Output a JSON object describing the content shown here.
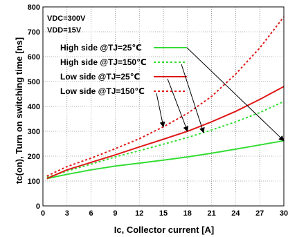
{
  "chart_data": {
    "type": "line",
    "xlabel": "Ic, Collector current [A]",
    "ylabel": "tc(on), Turn on switching time [ns]",
    "xlim": [
      0,
      30
    ],
    "ylim": [
      0,
      800
    ],
    "xticks": [
      0,
      3,
      6,
      9,
      12,
      15,
      18,
      21,
      24,
      27,
      30
    ],
    "yticks": [
      0,
      100,
      200,
      300,
      400,
      500,
      600,
      700,
      800
    ],
    "grid": "dotted",
    "conditions": [
      "VDC=300V",
      "VDD=15V"
    ],
    "legend_position": "upper-left",
    "series": [
      {
        "name": "High side @TJ=25℃",
        "color": "#33dd33",
        "dash": "solid",
        "x": [
          0.5,
          3,
          6,
          9,
          12,
          15,
          18,
          21,
          24,
          27,
          30
        ],
        "y": [
          110,
          127,
          145,
          160,
          172,
          184,
          197,
          212,
          228,
          245,
          262
        ]
      },
      {
        "name": "High side @TJ=150℃",
        "color": "#33dd33",
        "dash": "dotted",
        "x": [
          0.5,
          3,
          6,
          9,
          12,
          15,
          18,
          21,
          24,
          27,
          30
        ],
        "y": [
          115,
          140,
          168,
          197,
          222,
          248,
          275,
          305,
          338,
          375,
          420
        ]
      },
      {
        "name": "Low side @TJ=25℃",
        "color": "#e01818",
        "dash": "solid",
        "x": [
          0.5,
          3,
          6,
          9,
          12,
          15,
          18,
          21,
          24,
          27,
          30
        ],
        "y": [
          110,
          145,
          175,
          205,
          237,
          268,
          300,
          338,
          380,
          428,
          480
        ]
      },
      {
        "name": "Low side @TJ=150℃",
        "color": "#e01818",
        "dash": "dotted",
        "x": [
          0.5,
          3,
          6,
          9,
          12,
          15,
          18,
          21,
          24,
          27,
          30
        ],
        "y": [
          120,
          158,
          192,
          230,
          270,
          318,
          372,
          440,
          530,
          635,
          760
        ]
      }
    ]
  }
}
